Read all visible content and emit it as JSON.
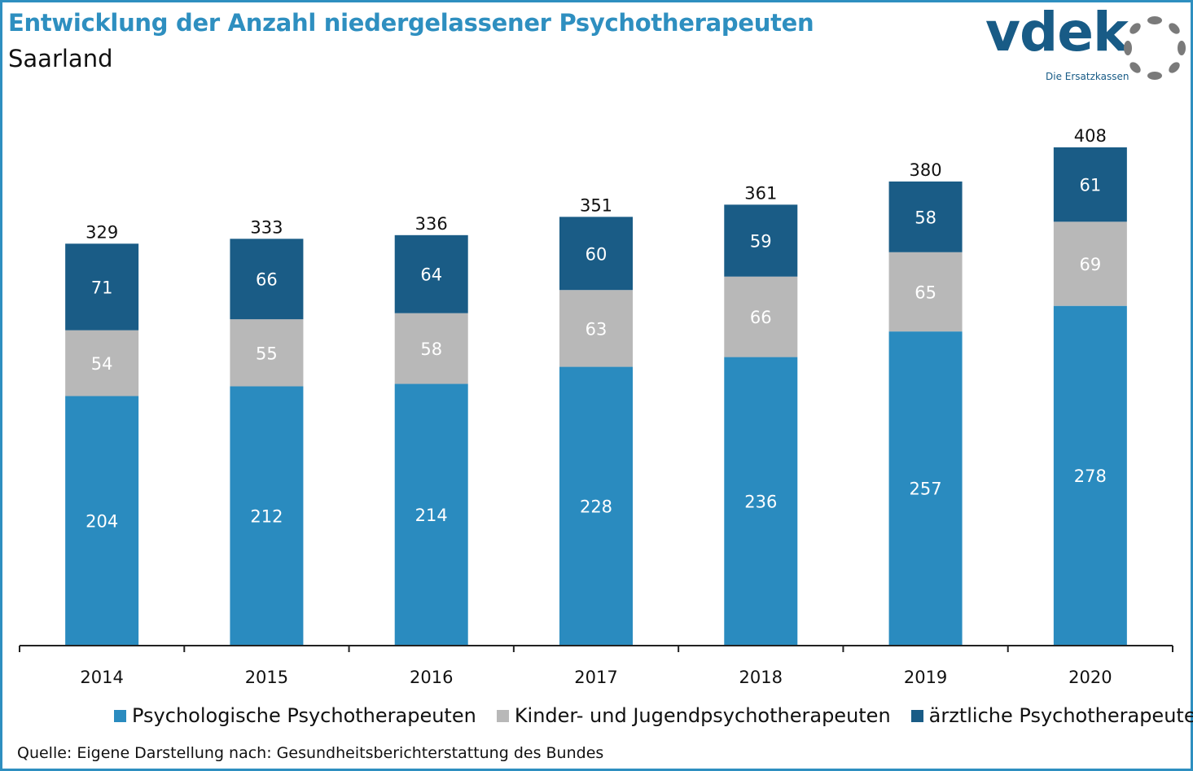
{
  "header": {
    "title": "Entwicklung der Anzahl niedergelassener Psychotherapeuten",
    "subtitle": "Saarland"
  },
  "logo": {
    "wordmark": "vdek",
    "tagline": "Die Ersatzkassen",
    "color": "#185b86"
  },
  "colors": {
    "frame": "#2e8fc0",
    "title": "#2e8fc0"
  },
  "chart_data": {
    "type": "bar",
    "stacked": true,
    "categories": [
      "2014",
      "2015",
      "2016",
      "2017",
      "2018",
      "2019",
      "2020"
    ],
    "series": [
      {
        "name": "Psychologische Psychotherapeuten",
        "color": "#2a8bbf",
        "values": [
          204,
          212,
          214,
          228,
          236,
          257,
          278
        ]
      },
      {
        "name": "Kinder- und Jugendpsychotherapeuten",
        "color": "#b8b8b8",
        "values": [
          54,
          55,
          58,
          63,
          66,
          65,
          69
        ]
      },
      {
        "name": "ärztliche Psychotherapeuten",
        "color": "#1a5c86",
        "values": [
          71,
          66,
          64,
          60,
          59,
          58,
          61
        ]
      }
    ],
    "totals": [
      "329",
      "333",
      "336",
      "351",
      "361",
      "380",
      "408"
    ],
    "ylim": [
      0,
      408
    ],
    "grid": false,
    "legend_position": "bottom"
  },
  "legend": {
    "items": [
      {
        "label": "Psychologische Psychotherapeuten",
        "color": "#2a8bbf"
      },
      {
        "label": "Kinder- und Jugendpsychotherapeuten",
        "color": "#b8b8b8"
      },
      {
        "label": "ärztliche Psychotherapeuten",
        "color": "#1a5c86"
      }
    ]
  },
  "source": "Quelle: Eigene Darstellung nach: Gesundheitsberichterstattung  des Bundes"
}
